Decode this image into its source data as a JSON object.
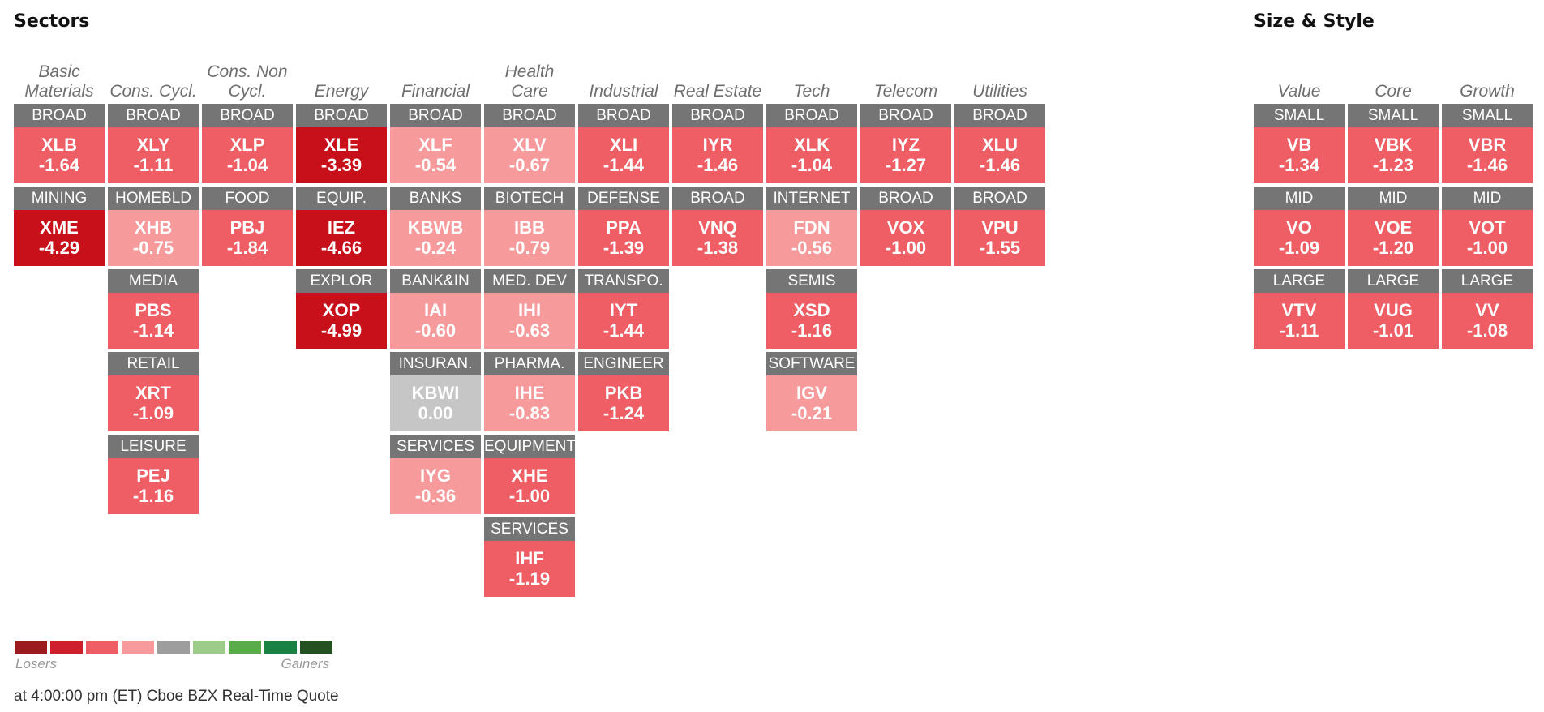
{
  "sectors_title": "Sectors",
  "style_title": "Size & Style",
  "colors": {
    "label_bg": "#757575",
    "neutral": "#c6c6c6",
    "light_loss": "#f79a9c",
    "med_loss": "#ee5e64",
    "heavy_loss": "#c8101a"
  },
  "sectors": [
    {
      "name": "Basic Materials",
      "cells": [
        {
          "label": "BROAD",
          "ticker": "XLB",
          "change": "-1.64"
        },
        {
          "label": "MINING",
          "ticker": "XME",
          "change": "-4.29"
        }
      ]
    },
    {
      "name": "Cons. Cycl.",
      "cells": [
        {
          "label": "BROAD",
          "ticker": "XLY",
          "change": "-1.11"
        },
        {
          "label": "HOMEBLD",
          "ticker": "XHB",
          "change": "-0.75"
        },
        {
          "label": "MEDIA",
          "ticker": "PBS",
          "change": "-1.14"
        },
        {
          "label": "RETAIL",
          "ticker": "XRT",
          "change": "-1.09"
        },
        {
          "label": "LEISURE",
          "ticker": "PEJ",
          "change": "-1.16"
        }
      ]
    },
    {
      "name": "Cons. Non Cycl.",
      "cells": [
        {
          "label": "BROAD",
          "ticker": "XLP",
          "change": "-1.04"
        },
        {
          "label": "FOOD",
          "ticker": "PBJ",
          "change": "-1.84"
        }
      ]
    },
    {
      "name": "Energy",
      "cells": [
        {
          "label": "BROAD",
          "ticker": "XLE",
          "change": "-3.39"
        },
        {
          "label": "EQUIP.",
          "ticker": "IEZ",
          "change": "-4.66"
        },
        {
          "label": "EXPLOR",
          "ticker": "XOP",
          "change": "-4.99"
        }
      ]
    },
    {
      "name": "Financial",
      "cells": [
        {
          "label": "BROAD",
          "ticker": "XLF",
          "change": "-0.54"
        },
        {
          "label": "BANKS",
          "ticker": "KBWB",
          "change": "-0.24"
        },
        {
          "label": "BANK&IN",
          "ticker": "IAI",
          "change": "-0.60"
        },
        {
          "label": "INSURAN.",
          "ticker": "KBWI",
          "change": "0.00"
        },
        {
          "label": "SERVICES",
          "ticker": "IYG",
          "change": "-0.36"
        }
      ]
    },
    {
      "name": "Health Care",
      "cells": [
        {
          "label": "BROAD",
          "ticker": "XLV",
          "change": "-0.67"
        },
        {
          "label": "BIOTECH",
          "ticker": "IBB",
          "change": "-0.79"
        },
        {
          "label": "MED. DEV",
          "ticker": "IHI",
          "change": "-0.63"
        },
        {
          "label": "PHARMA.",
          "ticker": "IHE",
          "change": "-0.83"
        },
        {
          "label": "EQUIPMENT",
          "ticker": "XHE",
          "change": "-1.00"
        },
        {
          "label": "SERVICES",
          "ticker": "IHF",
          "change": "-1.19"
        }
      ]
    },
    {
      "name": "Industrial",
      "cells": [
        {
          "label": "BROAD",
          "ticker": "XLI",
          "change": "-1.44"
        },
        {
          "label": "DEFENSE",
          "ticker": "PPA",
          "change": "-1.39"
        },
        {
          "label": "TRANSPO.",
          "ticker": "IYT",
          "change": "-1.44"
        },
        {
          "label": "ENGINEER",
          "ticker": "PKB",
          "change": "-1.24"
        }
      ]
    },
    {
      "name": "Real Estate",
      "cells": [
        {
          "label": "BROAD",
          "ticker": "IYR",
          "change": "-1.46"
        },
        {
          "label": "BROAD",
          "ticker": "VNQ",
          "change": "-1.38"
        }
      ]
    },
    {
      "name": "Tech",
      "cells": [
        {
          "label": "BROAD",
          "ticker": "XLK",
          "change": "-1.04"
        },
        {
          "label": "INTERNET",
          "ticker": "FDN",
          "change": "-0.56"
        },
        {
          "label": "SEMIS",
          "ticker": "XSD",
          "change": "-1.16"
        },
        {
          "label": "SOFTWARE",
          "ticker": "IGV",
          "change": "-0.21"
        }
      ]
    },
    {
      "name": "Telecom",
      "cells": [
        {
          "label": "BROAD",
          "ticker": "IYZ",
          "change": "-1.27"
        },
        {
          "label": "BROAD",
          "ticker": "VOX",
          "change": "-1.00"
        }
      ]
    },
    {
      "name": "Utilities",
      "cells": [
        {
          "label": "BROAD",
          "ticker": "XLU",
          "change": "-1.46"
        },
        {
          "label": "BROAD",
          "ticker": "VPU",
          "change": "-1.55"
        }
      ]
    }
  ],
  "styles": [
    {
      "name": "Value",
      "cells": [
        {
          "label": "SMALL",
          "ticker": "VB",
          "change": "-1.34"
        },
        {
          "label": "MID",
          "ticker": "VO",
          "change": "-1.09"
        },
        {
          "label": "LARGE",
          "ticker": "VTV",
          "change": "-1.11"
        }
      ]
    },
    {
      "name": "Core",
      "cells": [
        {
          "label": "SMALL",
          "ticker": "VBK",
          "change": "-1.23"
        },
        {
          "label": "MID",
          "ticker": "VOE",
          "change": "-1.20"
        },
        {
          "label": "LARGE",
          "ticker": "VUG",
          "change": "-1.01"
        }
      ]
    },
    {
      "name": "Growth",
      "cells": [
        {
          "label": "SMALL",
          "ticker": "VBR",
          "change": "-1.46"
        },
        {
          "label": "MID",
          "ticker": "VOT",
          "change": "-1.00"
        },
        {
          "label": "LARGE",
          "ticker": "VV",
          "change": "-1.08"
        }
      ]
    }
  ],
  "legend": {
    "swatches": [
      "#9b1b1f",
      "#cf1f2c",
      "#ee5e64",
      "#f79a9c",
      "#9d9d9d",
      "#9dcc8a",
      "#5aab4a",
      "#1a8144",
      "#235122"
    ],
    "losers_label": "Losers",
    "gainers_label": "Gainers"
  },
  "footer": "at 4:00:00 pm (ET) Cboe BZX Real-Time Quote"
}
